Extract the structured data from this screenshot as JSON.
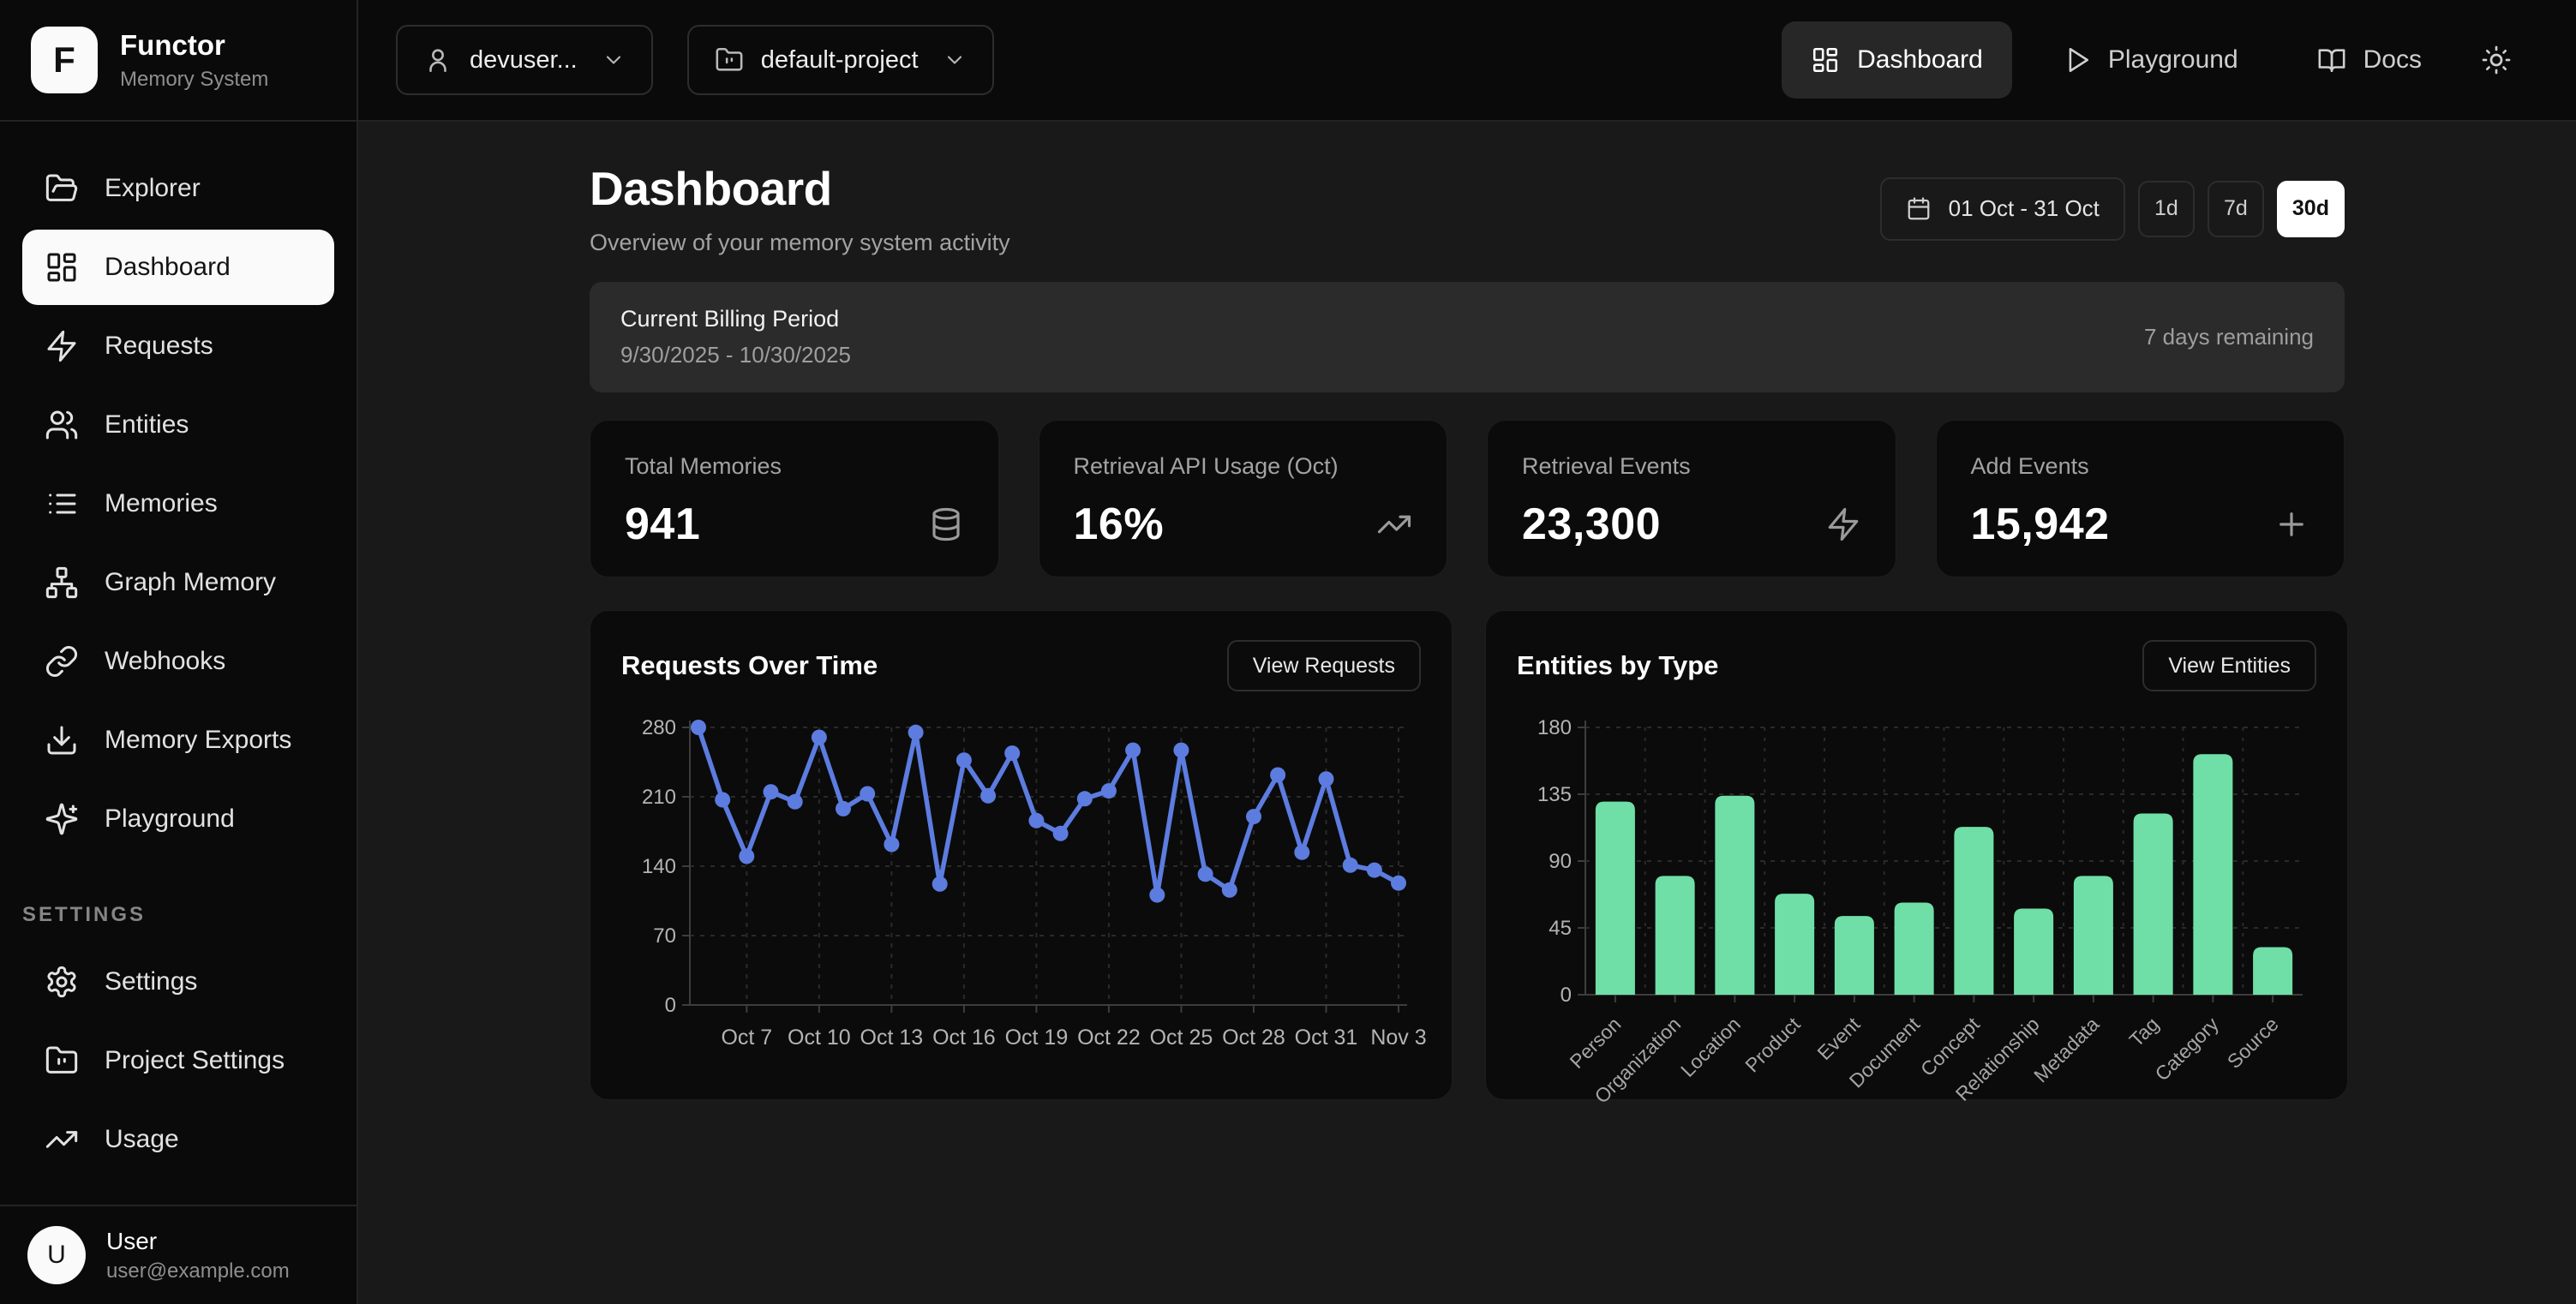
{
  "brand": {
    "initial": "F",
    "name": "Functor",
    "subtitle": "Memory System"
  },
  "topbar": {
    "user_dropdown": {
      "label": "devuser...",
      "icon": "user"
    },
    "project_dropdown": {
      "label": "default-project",
      "icon": "folder"
    },
    "nav": [
      {
        "label": "Dashboard",
        "icon": "grid",
        "active": true
      },
      {
        "label": "Playground",
        "icon": "play",
        "active": false
      },
      {
        "label": "Docs",
        "icon": "book",
        "active": false
      }
    ],
    "theme_icon": "sun"
  },
  "sidebar": {
    "items": [
      {
        "label": "Explorer",
        "icon": "folder-open",
        "active": false
      },
      {
        "label": "Dashboard",
        "icon": "grid",
        "active": true
      },
      {
        "label": "Requests",
        "icon": "zap",
        "active": false
      },
      {
        "label": "Entities",
        "icon": "users",
        "active": false
      },
      {
        "label": "Memories",
        "icon": "list",
        "active": false
      },
      {
        "label": "Graph Memory",
        "icon": "graph",
        "active": false
      },
      {
        "label": "Webhooks",
        "icon": "link",
        "active": false
      },
      {
        "label": "Memory Exports",
        "icon": "download",
        "active": false
      },
      {
        "label": "Playground",
        "icon": "sparkles",
        "active": false
      }
    ],
    "section_label": "SETTINGS",
    "settings_items": [
      {
        "label": "Settings",
        "icon": "gear",
        "active": false
      },
      {
        "label": "Project Settings",
        "icon": "folder",
        "active": false
      },
      {
        "label": "Usage",
        "icon": "trending-up",
        "active": false
      }
    ],
    "user": {
      "initial": "U",
      "name": "User",
      "email": "user@example.com"
    }
  },
  "page": {
    "title": "Dashboard",
    "subtitle": "Overview of your memory system activity",
    "date_range": {
      "label": "01 Oct - 31 Oct",
      "icon": "calendar"
    },
    "range_pills": [
      {
        "label": "1d",
        "active": false
      },
      {
        "label": "7d",
        "active": false
      },
      {
        "label": "30d",
        "active": true
      }
    ],
    "billing": {
      "title": "Current Billing Period",
      "period": "9/30/2025 - 10/30/2025",
      "remaining": "7 days remaining"
    }
  },
  "stats": [
    {
      "label": "Total Memories",
      "value": "941",
      "icon": "database"
    },
    {
      "label": "Retrieval API Usage (Oct)",
      "value": "16%",
      "icon": "trending-up"
    },
    {
      "label": "Retrieval Events",
      "value": "23,300",
      "icon": "zap"
    },
    {
      "label": "Add Events",
      "value": "15,942",
      "icon": "plus"
    }
  ],
  "colors": {
    "line_accent": "#5c7ce0",
    "bar_accent": "#6fdfa7",
    "grid_dash": "#2a2a2a",
    "axis": "#3d3d3d",
    "axis_text": "#b4b4b4",
    "page_bg": "#191919",
    "panel_bg": "#0a0a0a",
    "card_bg": "#0b0b0b",
    "billing_bg": "#2b2b2b",
    "active_item_bg": "#fafafa"
  },
  "chart_data": [
    {
      "type": "line",
      "title": "Requests Over Time",
      "action_label": "View Requests",
      "xlabel": "",
      "ylabel": "",
      "ylim": [
        0,
        280
      ],
      "y_ticks": [
        0,
        70,
        140,
        210,
        280
      ],
      "grid": "dashed",
      "legend": "none",
      "x_tick_labels": [
        "Oct 7",
        "Oct 10",
        "Oct 13",
        "Oct 16",
        "Oct 19",
        "Oct 22",
        "Oct 25",
        "Oct 28",
        "Oct 31",
        "Nov 3"
      ],
      "x_tick_indices": [
        2,
        5,
        8,
        11,
        14,
        17,
        20,
        23,
        26,
        29
      ],
      "values": [
        280,
        207,
        150,
        215,
        205,
        270,
        198,
        213,
        162,
        275,
        122,
        247,
        211,
        254,
        186,
        173,
        208,
        216,
        257,
        111,
        257,
        132,
        116,
        190,
        232,
        154,
        228,
        141,
        136,
        123
      ]
    },
    {
      "type": "bar",
      "title": "Entities by Type",
      "action_label": "View Entities",
      "xlabel": "",
      "ylabel": "",
      "ylim": [
        0,
        180
      ],
      "y_ticks": [
        0,
        45,
        90,
        135,
        180
      ],
      "grid": "dashed",
      "legend": "none",
      "categories": [
        "Person",
        "Organization",
        "Location",
        "Product",
        "Event",
        "Document",
        "Concept",
        "Relationship",
        "Metadata",
        "Tag",
        "Category",
        "Source"
      ],
      "values": [
        130,
        80,
        134,
        68,
        53,
        62,
        113,
        58,
        80,
        122,
        162,
        32
      ]
    }
  ]
}
